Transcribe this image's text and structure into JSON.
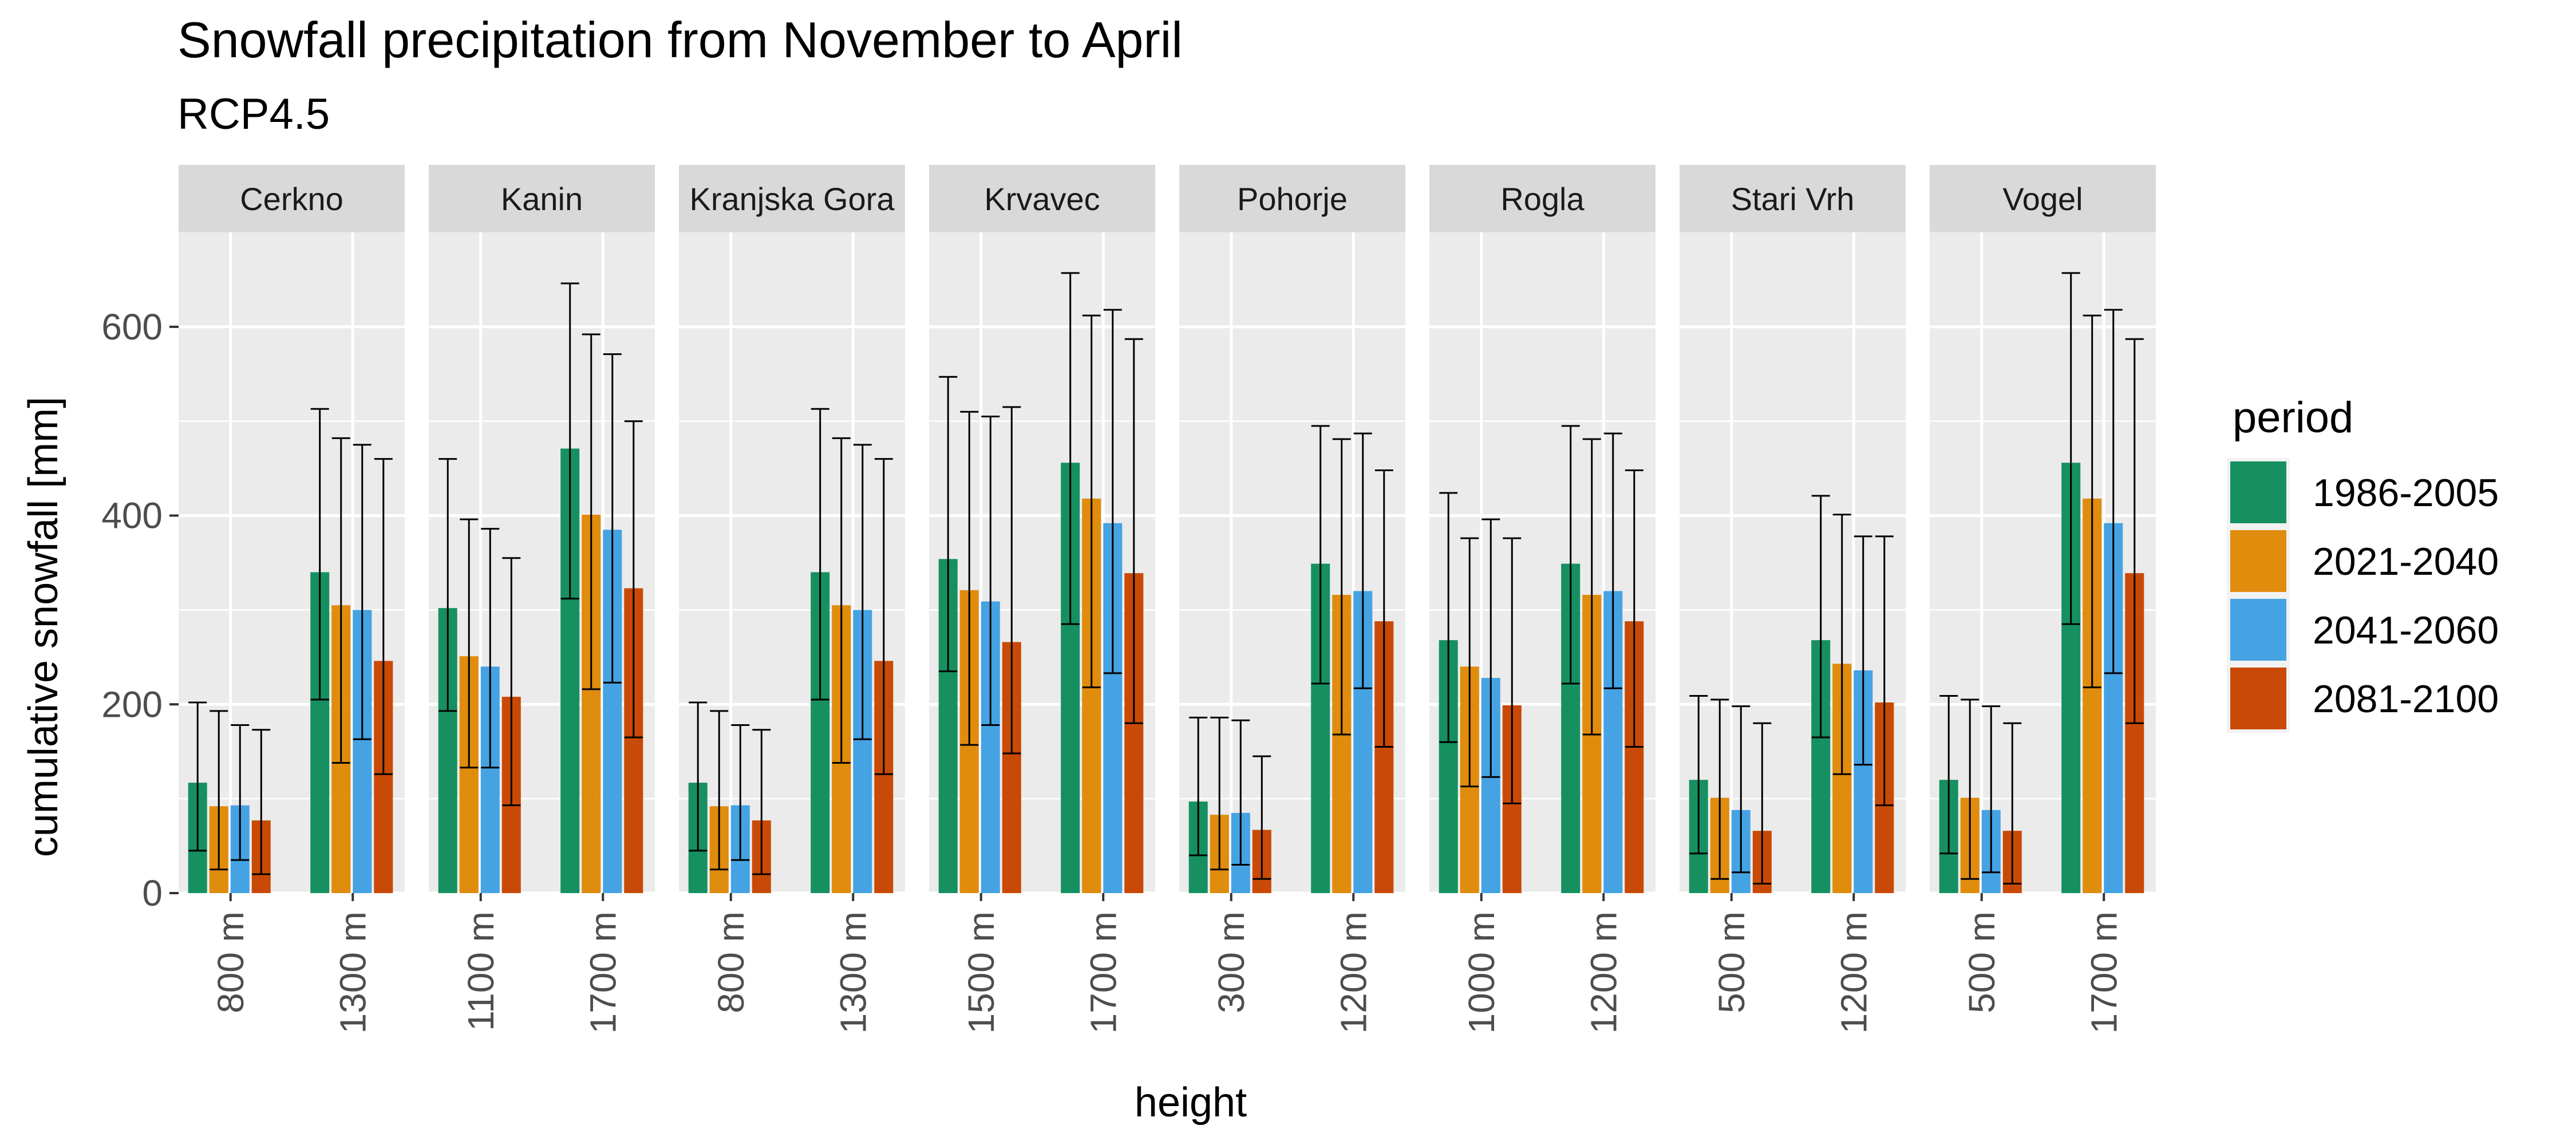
{
  "chart_data": {
    "type": "bar",
    "title": "Snowfall precipitation from November to April",
    "subtitle": "RCP4.5",
    "xlabel": "height",
    "ylabel": "cumulative snowfall [mm]",
    "ylim": [
      0,
      700
    ],
    "yticks": [
      0,
      200,
      400,
      600
    ],
    "grid": true,
    "legend": {
      "title": "period",
      "position": "right",
      "entries": [
        "1986-2005",
        "2021-2040",
        "2041-2060",
        "2081-2100"
      ]
    },
    "series_colors": [
      "#169060",
      "#e08c0d",
      "#45a3e3",
      "#c94a06"
    ],
    "panels": [
      {
        "name": "Cerkno",
        "groups": [
          {
            "label": "800 m",
            "values": [
              117,
              92,
              93,
              77
            ],
            "err_low": [
              45,
              25,
              35,
              20
            ],
            "err_high": [
              202,
              193,
              178,
              173
            ]
          },
          {
            "label": "1300 m",
            "values": [
              340,
              305,
              300,
              246
            ],
            "err_low": [
              205,
              138,
              163,
              126
            ],
            "err_high": [
              513,
              482,
              475,
              460
            ]
          }
        ]
      },
      {
        "name": "Kanin",
        "groups": [
          {
            "label": "1100 m",
            "values": [
              302,
              251,
              240,
              208
            ],
            "err_low": [
              193,
              133,
              133,
              93
            ],
            "err_high": [
              460,
              396,
              386,
              355
            ]
          },
          {
            "label": "1700 m",
            "values": [
              471,
              401,
              385,
              323
            ],
            "err_low": [
              312,
              216,
              223,
              165
            ],
            "err_high": [
              646,
              592,
              571,
              500
            ]
          }
        ]
      },
      {
        "name": "Kranjska Gora",
        "groups": [
          {
            "label": "800 m",
            "values": [
              117,
              92,
              93,
              77
            ],
            "err_low": [
              45,
              25,
              35,
              20
            ],
            "err_high": [
              202,
              193,
              178,
              173
            ]
          },
          {
            "label": "1300 m",
            "values": [
              340,
              305,
              300,
              246
            ],
            "err_low": [
              205,
              138,
              163,
              126
            ],
            "err_high": [
              513,
              482,
              475,
              460
            ]
          }
        ]
      },
      {
        "name": "Krvavec",
        "groups": [
          {
            "label": "1500 m",
            "values": [
              354,
              321,
              309,
              266
            ],
            "err_low": [
              235,
              157,
              178,
              148
            ],
            "err_high": [
              547,
              510,
              505,
              515
            ]
          },
          {
            "label": "1700 m",
            "values": [
              456,
              418,
              392,
              339
            ],
            "err_low": [
              285,
              218,
              233,
              180
            ],
            "err_high": [
              657,
              612,
              618,
              587
            ]
          }
        ]
      },
      {
        "name": "Pohorje",
        "groups": [
          {
            "label": "300 m",
            "values": [
              97,
              83,
              85,
              67
            ],
            "err_low": [
              40,
              25,
              30,
              15
            ],
            "err_high": [
              186,
              186,
              183,
              145
            ]
          },
          {
            "label": "1200 m",
            "values": [
              349,
              316,
              320,
              288
            ],
            "err_low": [
              222,
              168,
              217,
              155
            ],
            "err_high": [
              495,
              481,
              487,
              448
            ]
          }
        ]
      },
      {
        "name": "Rogla",
        "groups": [
          {
            "label": "1000 m",
            "values": [
              268,
              240,
              228,
              199
            ],
            "err_low": [
              160,
              113,
              123,
              95
            ],
            "err_high": [
              424,
              376,
              396,
              376
            ]
          },
          {
            "label": "1200 m",
            "values": [
              349,
              316,
              320,
              288
            ],
            "err_low": [
              222,
              168,
              217,
              155
            ],
            "err_high": [
              495,
              481,
              487,
              448
            ]
          }
        ]
      },
      {
        "name": "Stari Vrh",
        "groups": [
          {
            "label": "500 m",
            "values": [
              120,
              101,
              88,
              66
            ],
            "err_low": [
              42,
              15,
              22,
              10
            ],
            "err_high": [
              209,
              205,
              198,
              180
            ]
          },
          {
            "label": "1200 m",
            "values": [
              268,
              243,
              236,
              202
            ],
            "err_low": [
              165,
              126,
              136,
              93
            ],
            "err_high": [
              421,
              401,
              378,
              378
            ]
          }
        ]
      },
      {
        "name": "Vogel",
        "groups": [
          {
            "label": "500 m",
            "values": [
              120,
              101,
              88,
              66
            ],
            "err_low": [
              42,
              15,
              22,
              10
            ],
            "err_high": [
              209,
              205,
              198,
              180
            ]
          },
          {
            "label": "1700 m",
            "values": [
              456,
              418,
              392,
              339
            ],
            "err_low": [
              285,
              218,
              233,
              180
            ],
            "err_high": [
              657,
              612,
              618,
              587
            ]
          }
        ]
      }
    ]
  }
}
